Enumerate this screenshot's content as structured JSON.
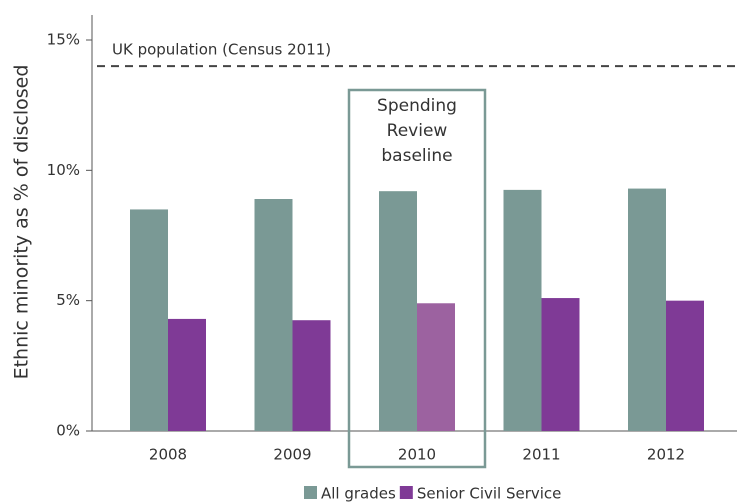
{
  "chart_data": {
    "type": "bar",
    "y_label": "Ethnic minority as % of disclosed",
    "categories": [
      "2008",
      "2009",
      "2010",
      "2011",
      "2012"
    ],
    "series": [
      {
        "name": "All grades",
        "color": "#7a9995",
        "values": [
          8.5,
          8.9,
          9.2,
          9.25,
          9.3
        ]
      },
      {
        "name": "Senior Civil Service",
        "color": "#7f3a96",
        "colors": [
          "#7f3a96",
          "#7f3a96",
          "#9c62a0",
          "#7f3a96",
          "#7f3a96"
        ],
        "values": [
          4.3,
          4.25,
          4.9,
          5.1,
          5.0
        ]
      }
    ],
    "ylim": [
      0,
      15
    ],
    "yticks": [
      {
        "value": 0,
        "label": "0%"
      },
      {
        "value": 5,
        "label": "5%"
      },
      {
        "value": 10,
        "label": "10%"
      },
      {
        "value": 15,
        "label": "15%"
      }
    ],
    "reference_line": {
      "label": "UK population (Census 2011)",
      "value": 14.0,
      "color": "#444444"
    },
    "annotation": {
      "lines": [
        "Spending",
        "Review",
        "baseline"
      ],
      "category_index": 2,
      "color": "#7a9995"
    },
    "legend": "bottom"
  }
}
